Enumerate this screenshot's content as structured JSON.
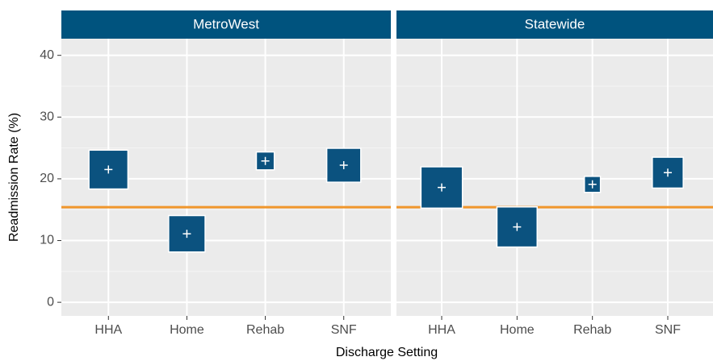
{
  "chart_data": [
    {
      "type": "square",
      "title": "MetroWest",
      "categories": [
        "HHA",
        "Home",
        "Rehab",
        "SNF"
      ],
      "values": [
        21.5,
        11.1,
        22.9,
        22.2
      ],
      "sizes": [
        6.3,
        5.9,
        2.9,
        5.5
      ],
      "color": "#0b527f",
      "reference": 15.4,
      "reference_color": "#f0962c",
      "ylim": [
        -2.2,
        42.7
      ],
      "yticks": [
        0,
        10,
        20,
        30,
        40
      ],
      "grid": true,
      "y_label": "Readmission Rate (%)",
      "x_label": "Discharge Setting"
    },
    {
      "type": "square",
      "title": "Statewide",
      "categories": [
        "HHA",
        "Home",
        "Rehab",
        "SNF"
      ],
      "values": [
        18.6,
        12.2,
        19.1,
        21.0
      ],
      "sizes": [
        6.7,
        6.5,
        2.6,
        5.0
      ],
      "color": "#0b527f",
      "reference": 15.4,
      "reference_color": "#f0962c",
      "ylim": [
        -2.2,
        42.7
      ],
      "yticks": [
        0,
        10,
        20,
        30,
        40
      ],
      "grid": true
    }
  ]
}
